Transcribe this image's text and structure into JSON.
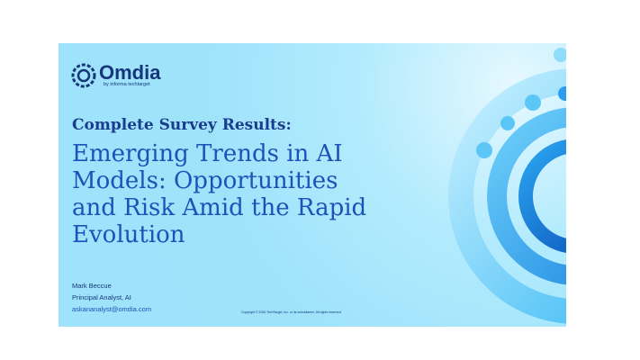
{
  "logo": {
    "name": "Omdia",
    "tagline": "by informa techtarget"
  },
  "slide": {
    "kicker": "Complete Survey Results:",
    "title_lines": [
      "Emerging Trends in AI",
      "Models: Opportunities",
      "and Risk Amid the Rapid",
      "Evolution"
    ],
    "author": "Mark Beccue",
    "role": "Principal Analyst, AI",
    "email": "askananalyst@omdia.com",
    "copyright": "Copyright © 2026 TechTarget, Inc. or its subsidiaries. All rights reserved."
  }
}
